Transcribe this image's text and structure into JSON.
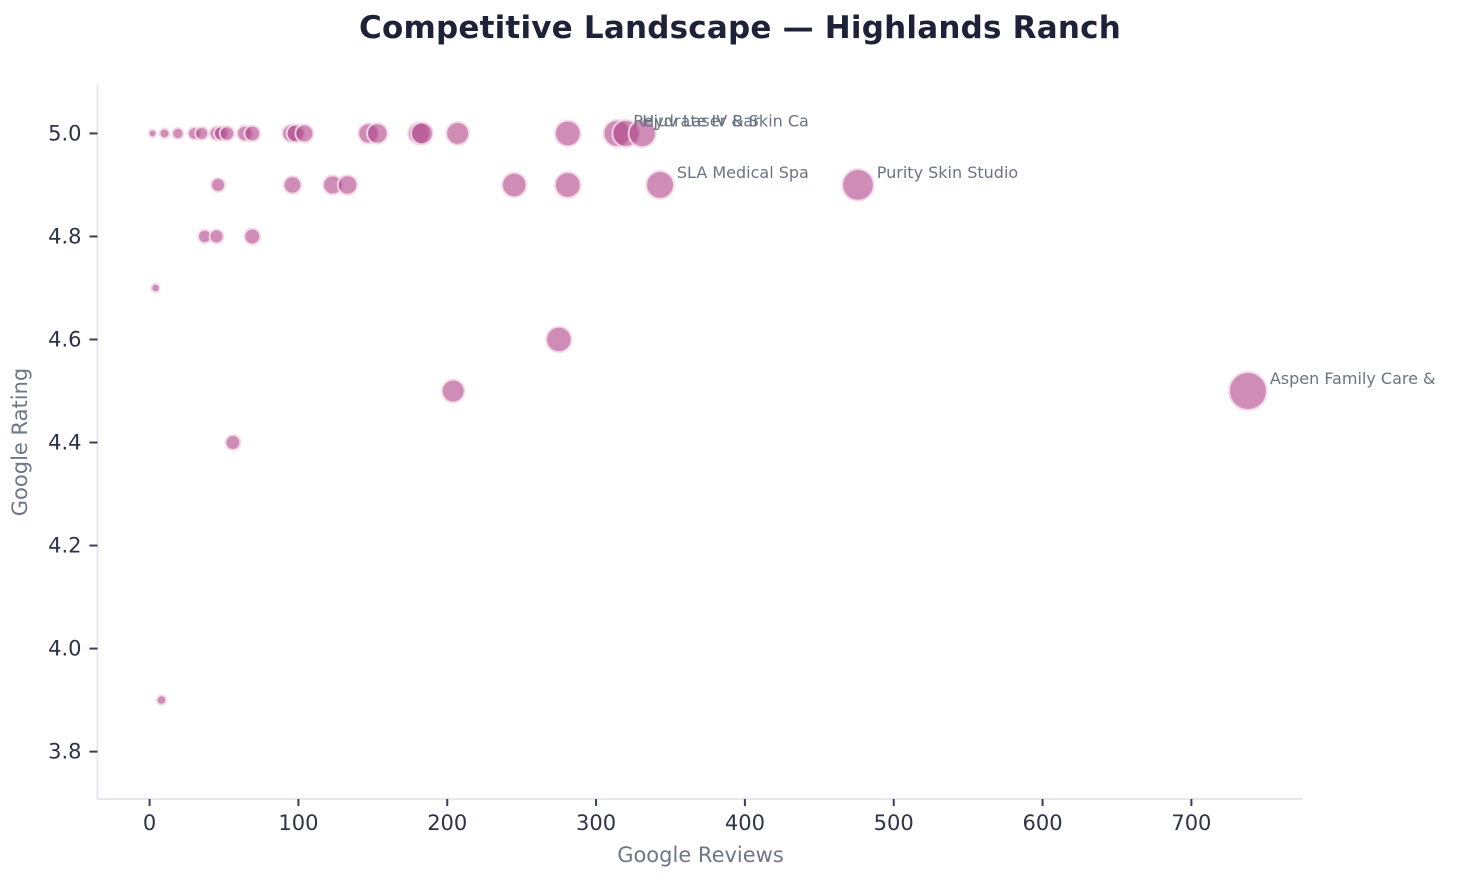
{
  "chart_data": {
    "type": "scatter",
    "title": "Competitive Landscape — Highlands Ranch",
    "xlabel": "Google Reviews",
    "ylabel": "Google Rating",
    "xlim": [
      -35,
      775
    ],
    "ylim": [
      3.708,
      5.094
    ],
    "grid": false,
    "legend": "none",
    "x_ticks": [
      0,
      100,
      200,
      300,
      400,
      500,
      600,
      700
    ],
    "y_ticks": [
      "3.8",
      "4.0",
      "4.2",
      "4.4",
      "4.6",
      "4.8",
      "5.0"
    ],
    "bubble_size_meaning": "proportional to review count",
    "points": [
      {
        "reviews": 2,
        "rating": 5.0
      },
      {
        "reviews": 10,
        "rating": 5.0
      },
      {
        "reviews": 19,
        "rating": 5.0
      },
      {
        "reviews": 30,
        "rating": 5.0
      },
      {
        "reviews": 35,
        "rating": 5.0
      },
      {
        "reviews": 45,
        "rating": 5.0
      },
      {
        "reviews": 48,
        "rating": 5.0
      },
      {
        "reviews": 52,
        "rating": 5.0
      },
      {
        "reviews": 64,
        "rating": 5.0
      },
      {
        "reviews": 69,
        "rating": 5.0
      },
      {
        "reviews": 95,
        "rating": 5.0
      },
      {
        "reviews": 98,
        "rating": 5.0
      },
      {
        "reviews": 104,
        "rating": 5.0
      },
      {
        "reviews": 147,
        "rating": 5.0
      },
      {
        "reviews": 153,
        "rating": 5.0
      },
      {
        "reviews": 181,
        "rating": 5.0
      },
      {
        "reviews": 183,
        "rating": 5.0
      },
      {
        "reviews": 207,
        "rating": 5.0
      },
      {
        "reviews": 281,
        "rating": 5.0
      },
      {
        "reviews": 314,
        "rating": 5.0,
        "label": "Rejuv Laser & Skin Ca"
      },
      {
        "reviews": 320,
        "rating": 5.0,
        "label": "Hydrate IV Bar"
      },
      {
        "reviews": 331,
        "rating": 5.0
      },
      {
        "reviews": 46,
        "rating": 4.9
      },
      {
        "reviews": 96,
        "rating": 4.9
      },
      {
        "reviews": 123,
        "rating": 4.9
      },
      {
        "reviews": 133,
        "rating": 4.9
      },
      {
        "reviews": 245,
        "rating": 4.9
      },
      {
        "reviews": 281,
        "rating": 4.9
      },
      {
        "reviews": 343,
        "rating": 4.9,
        "label": "SLA Medical Spa"
      },
      {
        "reviews": 476,
        "rating": 4.9,
        "label": "Purity Skin Studio"
      },
      {
        "reviews": 37,
        "rating": 4.8
      },
      {
        "reviews": 45,
        "rating": 4.8
      },
      {
        "reviews": 69,
        "rating": 4.8
      },
      {
        "reviews": 4,
        "rating": 4.7
      },
      {
        "reviews": 275,
        "rating": 4.6
      },
      {
        "reviews": 204,
        "rating": 4.5
      },
      {
        "reviews": 738,
        "rating": 4.5,
        "label": "Aspen Family Care &"
      },
      {
        "reviews": 56,
        "rating": 4.4
      },
      {
        "reviews": 8,
        "rating": 3.9
      }
    ],
    "colors": {
      "bubble_fill": "#b04589",
      "bubble_fill_opacity": "0.62",
      "bubble_stroke": "#f3d9e8",
      "title": "#1d2238",
      "tick_labels": "#2e3349",
      "axis_titles": "#6e7787",
      "annotations": "#6b7482",
      "spines": "#e7e7f0",
      "tick_marks": "#3a3f54",
      "background": "#ffffff"
    }
  }
}
